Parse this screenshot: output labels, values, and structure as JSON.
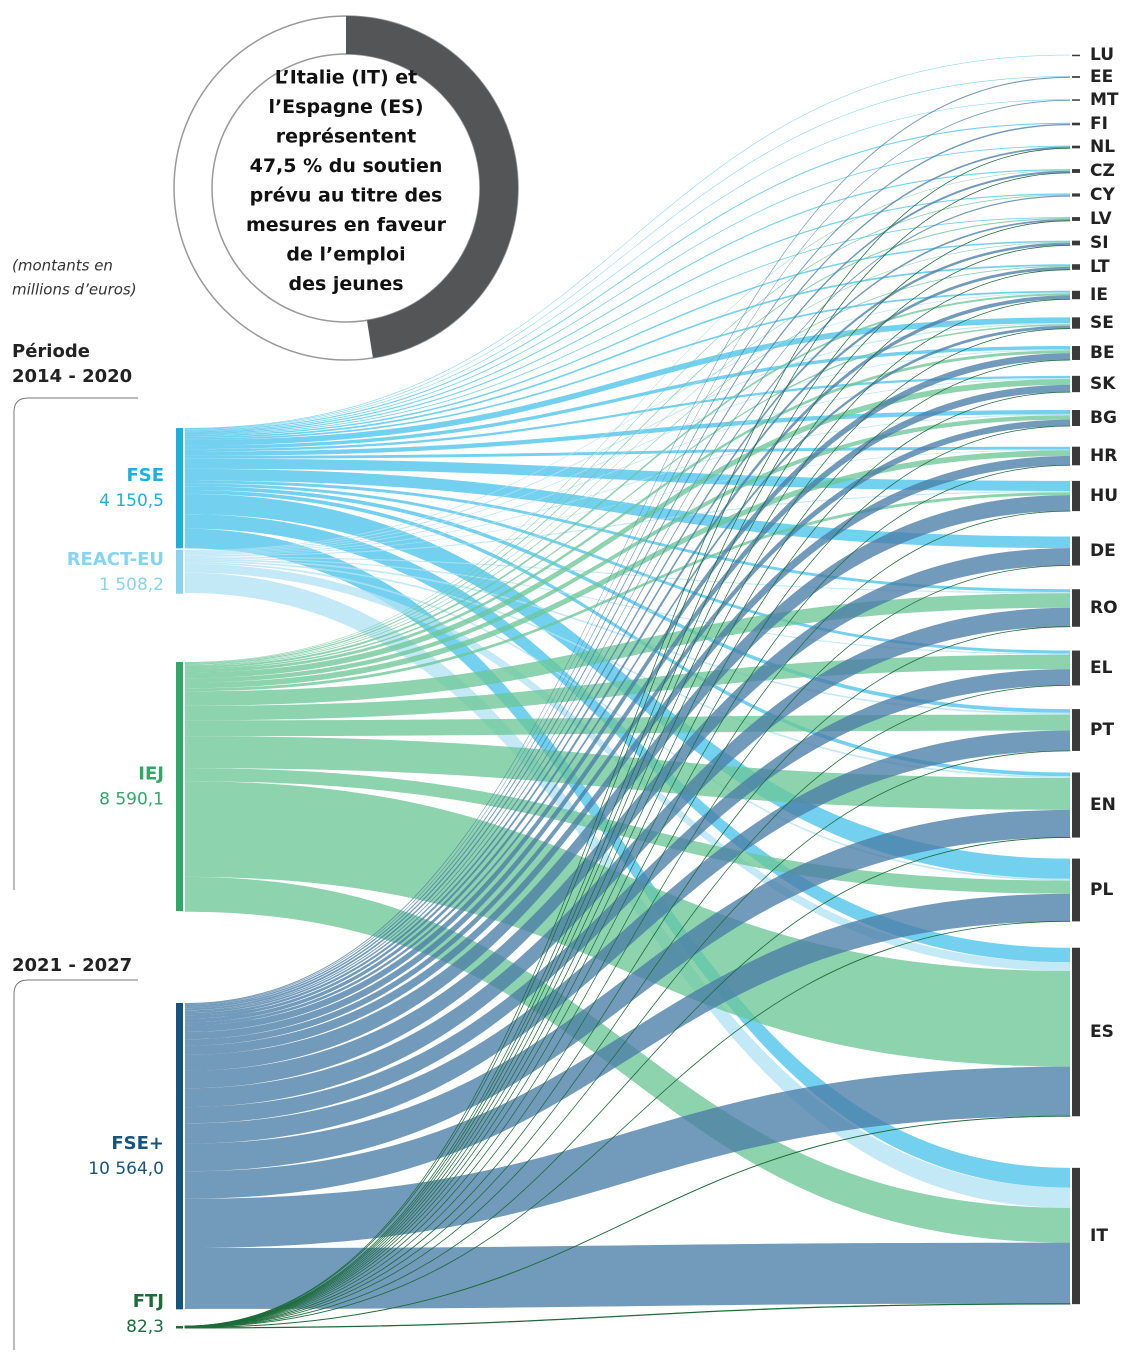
{
  "chart_data": {
    "type": "sankey",
    "annotation": {
      "share": 47.5,
      "lines": [
        "L’Italie (IT) et",
        "l’Espagne (ES)",
        "représentent",
        "47,5 % du soutien",
        "prévu au titre des",
        "mesures en faveur",
        "de l’emploi",
        "des jeunes"
      ]
    },
    "note": [
      "(montants en",
      "millions d’euros)"
    ],
    "periods": [
      [
        "Période",
        "2014 - 2020"
      ],
      [
        "2021 - 2027"
      ]
    ],
    "sources": {
      "labels": [
        "FSE",
        "REACT-EU",
        "IEJ",
        "FSE+",
        "FTJ"
      ],
      "values": [
        4150.5,
        1508.2,
        8590.1,
        10564.0,
        82.3
      ],
      "value_labels": [
        "4 150,5",
        "1 508,2",
        "8 590,1",
        "10 564,0",
        "82,3"
      ],
      "colors": [
        "#1cb0de",
        "#86d4ef",
        "#2fa866",
        "#16547f",
        "#1e6b3a"
      ],
      "link_colors": [
        "#4cc4ea",
        "#b3e3f4",
        "#6cc797",
        "#4a7ea6",
        "#1e6b3a"
      ]
    },
    "targets": {
      "labels": [
        "LU",
        "EE",
        "MT",
        "FI",
        "NL",
        "CZ",
        "CY",
        "LV",
        "SI",
        "LT",
        "IE",
        "SE",
        "BE",
        "SK",
        "BG",
        "HR",
        "HU",
        "DE",
        "RO",
        "EL",
        "PT",
        "EN",
        "PL",
        "ES",
        "IT"
      ],
      "color": "#3a3a3a",
      "flows": [
        [
          20,
          0,
          0,
          0,
          0
        ],
        [
          20,
          0,
          0,
          40,
          0
        ],
        [
          20,
          0,
          0,
          30,
          0
        ],
        [
          40,
          0,
          0,
          50,
          0
        ],
        [
          30,
          0,
          0,
          60,
          2
        ],
        [
          40,
          0,
          20,
          70,
          3
        ],
        [
          40,
          0,
          30,
          40,
          0
        ],
        [
          30,
          0,
          40,
          60,
          2
        ],
        [
          50,
          0,
          20,
          90,
          2
        ],
        [
          60,
          0,
          30,
          100,
          2
        ],
        [
          60,
          30,
          70,
          130,
          1
        ],
        [
          200,
          40,
          50,
          100,
          1
        ],
        [
          120,
          30,
          100,
          230,
          1
        ],
        [
          80,
          30,
          200,
          250,
          2
        ],
        [
          150,
          30,
          150,
          220,
          2
        ],
        [
          100,
          20,
          200,
          320,
          2
        ],
        [
          350,
          40,
          100,
          550,
          2
        ],
        [
          400,
          0,
          0,
          600,
          2
        ],
        [
          100,
          40,
          500,
          650,
          5
        ],
        [
          100,
          40,
          500,
          560,
          3
        ],
        [
          130,
          60,
          550,
          700,
          3
        ],
        [
          130,
          60,
          1100,
          950,
          5
        ],
        [
          700,
          60,
          450,
          950,
          5
        ],
        [
          500,
          300,
          3300,
          1700,
          10
        ],
        [
          680,
          700,
          1200,
          2100,
          20
        ]
      ]
    }
  }
}
